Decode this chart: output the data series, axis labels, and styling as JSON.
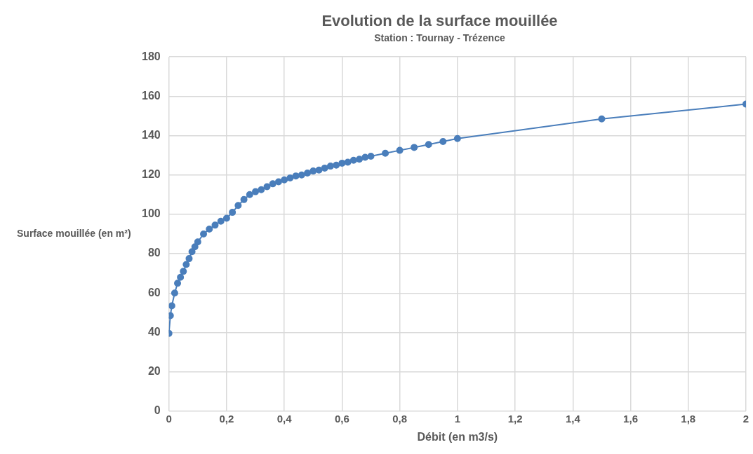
{
  "chart_data": {
    "type": "line",
    "title": "Evolution de la surface mouillée",
    "subtitle": "Station : Tournay - Trézence",
    "xlabel": "Débit (en m3/s)",
    "ylabel": "Surface mouillée (en m²)",
    "x": [
      0,
      0.005,
      0.01,
      0.02,
      0.03,
      0.04,
      0.05,
      0.06,
      0.07,
      0.08,
      0.09,
      0.1,
      0.12,
      0.14,
      0.16,
      0.18,
      0.2,
      0.22,
      0.24,
      0.26,
      0.28,
      0.3,
      0.32,
      0.34,
      0.36,
      0.38,
      0.4,
      0.42,
      0.44,
      0.46,
      0.48,
      0.5,
      0.52,
      0.54,
      0.56,
      0.58,
      0.6,
      0.62,
      0.64,
      0.66,
      0.68,
      0.7,
      0.75,
      0.8,
      0.85,
      0.9,
      0.95,
      1,
      1.5,
      2
    ],
    "series": [
      {
        "color": "#4a7ebb",
        "values": [
          39.5,
          48.5,
          53.5,
          60,
          65,
          68,
          71,
          74.5,
          77.5,
          81,
          83.5,
          86,
          90,
          92.5,
          94.5,
          96.5,
          98,
          101,
          104.5,
          107.5,
          110,
          111.5,
          112.5,
          114,
          115.5,
          116.5,
          117.5,
          118.5,
          119.5,
          120,
          121,
          122,
          122.5,
          123.5,
          124.5,
          125,
          126,
          126.5,
          127.5,
          128,
          129,
          129.5,
          131,
          132.5,
          134,
          135.5,
          137,
          138.5,
          148.5,
          156
        ]
      }
    ],
    "xlim": [
      0,
      2
    ],
    "xticks": [
      {
        "value": 0,
        "label": "0"
      },
      {
        "value": 0.2,
        "label": "0,2"
      },
      {
        "value": 0.4,
        "label": "0,4"
      },
      {
        "value": 0.6,
        "label": "0,6"
      },
      {
        "value": 0.8,
        "label": "0,8"
      },
      {
        "value": 1,
        "label": "1"
      },
      {
        "value": 1.2,
        "label": "1,2"
      },
      {
        "value": 1.4,
        "label": "1,4"
      },
      {
        "value": 1.6,
        "label": "1,6"
      },
      {
        "value": 1.8,
        "label": "1,8"
      },
      {
        "value": 2,
        "label": "2"
      }
    ],
    "ylim": [
      0,
      180
    ],
    "yticks": [
      0,
      20,
      40,
      60,
      80,
      100,
      120,
      140,
      160,
      180
    ],
    "grid": true,
    "legend": false,
    "marker": "circle",
    "line_style": "solid"
  }
}
